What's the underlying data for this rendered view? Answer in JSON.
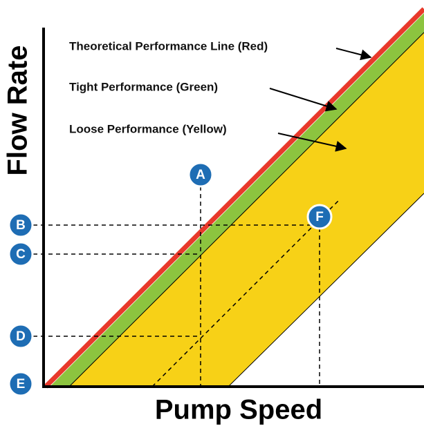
{
  "y_axis_label": "Flow Rate",
  "x_axis_label": "Pump Speed",
  "annotations": [
    "Theoretical Performance Line (Red)",
    "Tight Performance (Green)",
    "Loose Performance (Yellow)"
  ],
  "markers": [
    "A",
    "B",
    "C",
    "D",
    "E",
    "F"
  ]
}
